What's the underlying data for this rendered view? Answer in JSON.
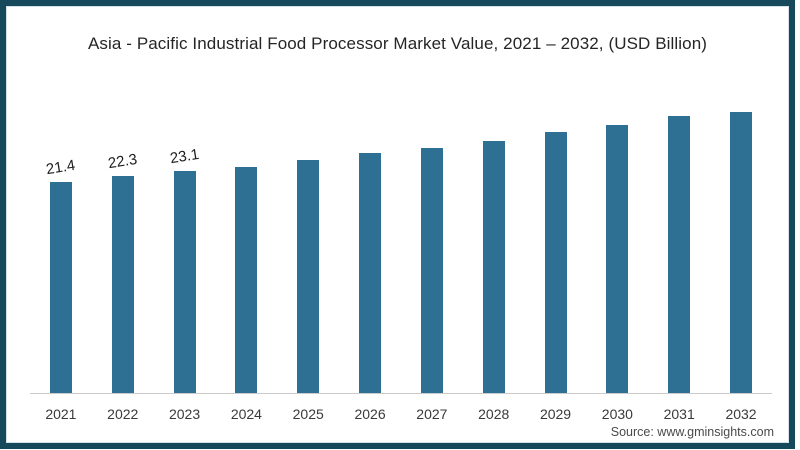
{
  "frame": {
    "border_color": "#17495d",
    "background": "#ffffff"
  },
  "chart_data": {
    "type": "bar",
    "title": "Asia - Pacific Industrial Food Processor Market Value, 2021 – 2032, (USD Billion)",
    "categories": [
      "2021",
      "2022",
      "2023",
      "2024",
      "2025",
      "2026",
      "2027",
      "2028",
      "2029",
      "2030",
      "2031",
      "2032"
    ],
    "values": [
      21.4,
      22.3,
      23.1,
      23.8,
      24.8,
      25.9,
      26.7,
      27.8,
      29.1,
      30.2,
      31.6,
      32.2
    ],
    "data_labels": [
      "21.4",
      "22.3",
      "23.1",
      "",
      "",
      "",
      "",
      "",
      "",
      "",
      "",
      ""
    ],
    "xlabel": "",
    "ylabel": "",
    "bar_color": "#2e7093",
    "axis_line_color": "#cbcbcb",
    "y_axis_visible": false,
    "gridlines": false,
    "legend_position": "none"
  },
  "source": {
    "label": "Source: www.gminsights.com"
  }
}
